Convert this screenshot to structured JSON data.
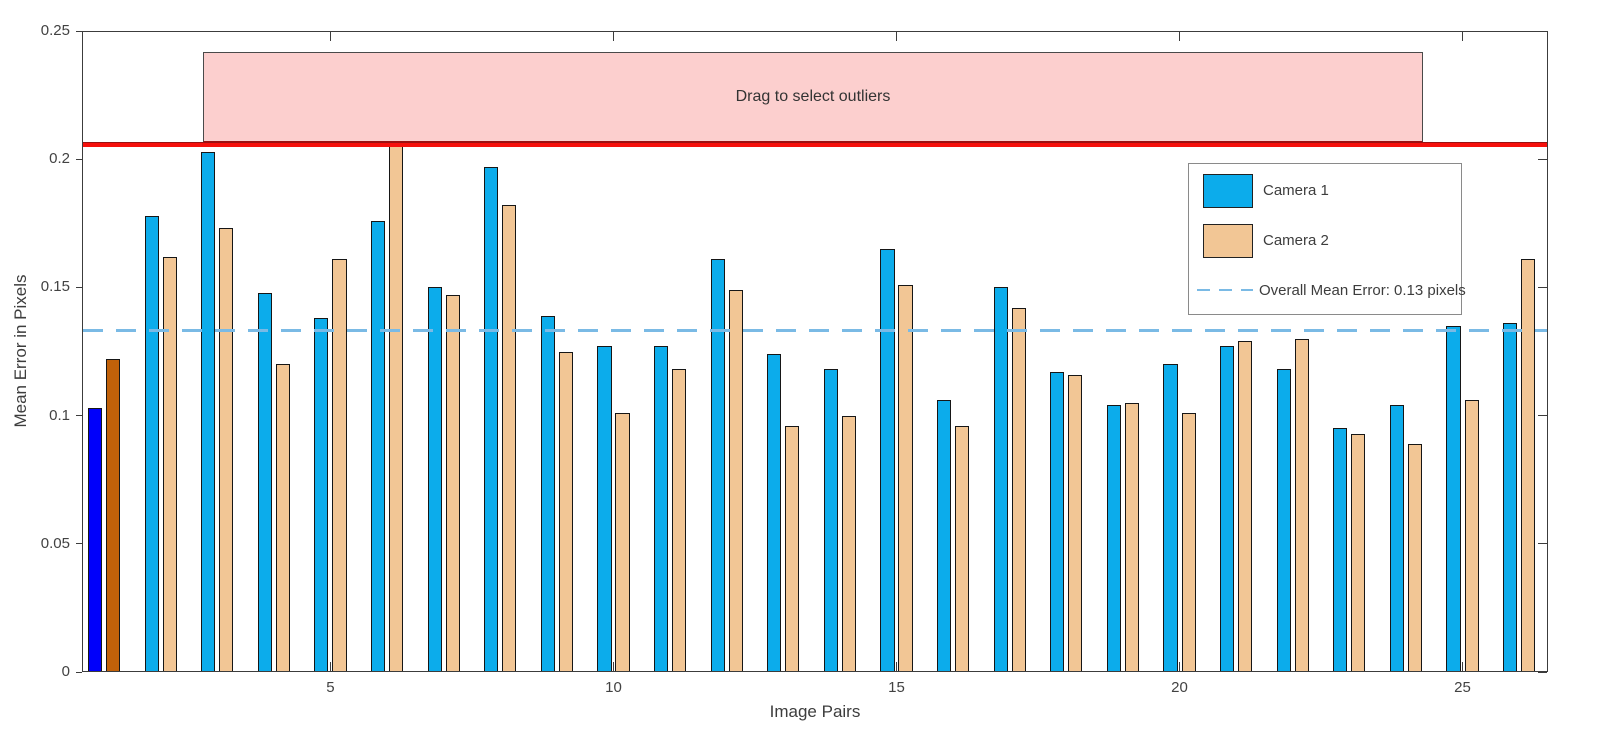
{
  "chart_data": {
    "type": "bar",
    "title": "",
    "xlabel": "Image Pairs",
    "ylabel": "Mean Error in Pixels",
    "xlim": [
      0.61,
      26.51
    ],
    "ylim": [
      0,
      0.25
    ],
    "grid": false,
    "x_ticks": [
      5,
      10,
      15,
      20,
      25
    ],
    "y_ticks": [
      0,
      0.05,
      0.1,
      0.15,
      0.2,
      0.25
    ],
    "y_tick_labels": [
      "0",
      "0.05",
      "0.1",
      "0.15",
      "0.2",
      "0.25"
    ],
    "categories": [
      1,
      2,
      3,
      4,
      5,
      6,
      7,
      8,
      9,
      10,
      11,
      12,
      13,
      14,
      15,
      16,
      17,
      18,
      19,
      20,
      21,
      22,
      23,
      24,
      25,
      26
    ],
    "series": [
      {
        "name": "Camera 1",
        "color": "#0caceb",
        "selected_color": "#0000fa",
        "values": [
          0.103,
          0.178,
          0.203,
          0.148,
          0.138,
          0.176,
          0.15,
          0.197,
          0.139,
          0.127,
          0.127,
          0.161,
          0.124,
          0.118,
          0.165,
          0.106,
          0.15,
          0.117,
          0.104,
          0.12,
          0.127,
          0.118,
          0.095,
          0.104,
          0.135,
          0.136
        ]
      },
      {
        "name": "Camera 2",
        "color": "#f2c695",
        "selected_color": "#c16109",
        "values": [
          0.122,
          0.162,
          0.173,
          0.12,
          0.161,
          0.205,
          0.147,
          0.182,
          0.125,
          0.101,
          0.118,
          0.149,
          0.096,
          0.1,
          0.151,
          0.096,
          0.142,
          0.116,
          0.105,
          0.101,
          0.129,
          0.13,
          0.093,
          0.089,
          0.106,
          0.161
        ]
      }
    ],
    "selected_pair": 1,
    "mean_line": {
      "value": 0.1335,
      "label": "Overall Mean Error: 0.13 pixels",
      "color": "#7abae5"
    },
    "threshold_line": {
      "value": 0.2065,
      "color": "#f5100c",
      "dark_edge_color": "#9c1111"
    },
    "drag_region": {
      "label": "Drag to select outliers",
      "x_start": 2.75,
      "x_end": 24.31,
      "y_bottom": 0.2065,
      "y_top": 0.242,
      "fill": "#fccfce"
    },
    "legend": {
      "position": "upper-right-inside",
      "entries": [
        "Camera 1",
        "Camera 2",
        "Overall Mean Error: 0.13 pixels"
      ]
    }
  }
}
